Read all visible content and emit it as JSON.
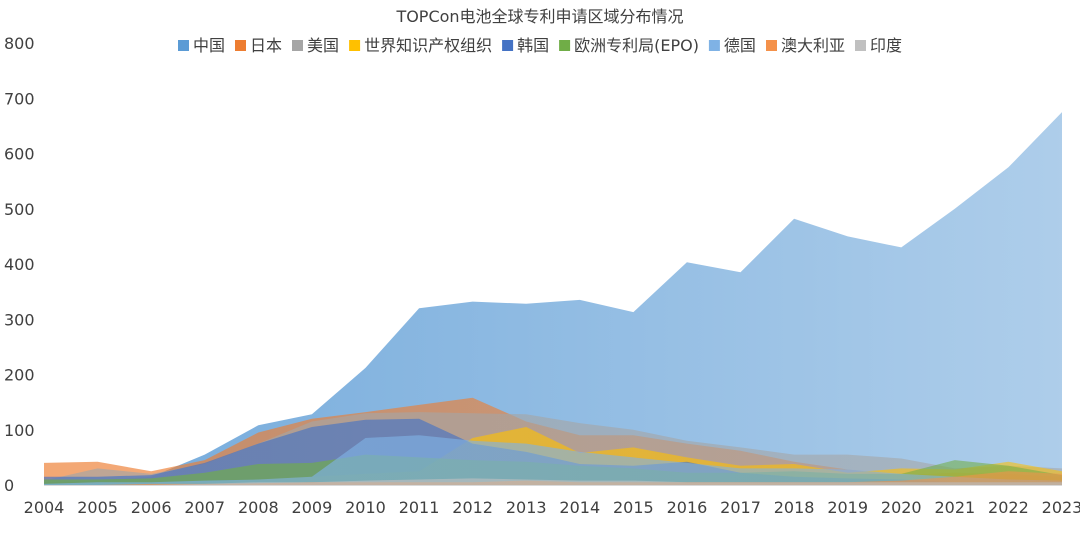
{
  "chart_data": {
    "type": "area",
    "title": "TOPCon电池全球专利申请区域分布情况",
    "xlabel": "",
    "ylabel": "",
    "ylim": [
      0,
      800
    ],
    "yticks": [
      "0",
      "100",
      "200",
      "300",
      "400",
      "500",
      "600",
      "700",
      "800"
    ],
    "categories": [
      "2004",
      "2005",
      "2006",
      "2007",
      "2008",
      "2009",
      "2010",
      "2011",
      "2012",
      "2013",
      "2014",
      "2015",
      "2016",
      "2017",
      "2018",
      "2019",
      "2020",
      "2021",
      "2022",
      "2023"
    ],
    "legend_position": "top",
    "series": [
      {
        "name": "中国",
        "color": "#5b9bd5",
        "values": [
          5,
          8,
          15,
          55,
          108,
          128,
          212,
          320,
          332,
          328,
          335,
          313,
          403,
          385,
          482,
          450,
          430,
          500,
          575,
          675
        ]
      },
      {
        "name": "日本",
        "color": "#ed7d31",
        "values": [
          40,
          42,
          25,
          45,
          95,
          120,
          132,
          145,
          158,
          115,
          90,
          90,
          75,
          62,
          42,
          28,
          18,
          22,
          20,
          15
        ]
      },
      {
        "name": "美国",
        "color": "#a5a5a5",
        "values": [
          8,
          30,
          20,
          38,
          75,
          115,
          130,
          132,
          130,
          128,
          112,
          100,
          80,
          68,
          55,
          55,
          48,
          30,
          35,
          30
        ]
      },
      {
        "name": "世界知识产权组织",
        "color": "#ffc000",
        "values": [
          0,
          0,
          2,
          5,
          10,
          15,
          20,
          25,
          85,
          105,
          58,
          68,
          50,
          35,
          38,
          22,
          30,
          28,
          42,
          25
        ]
      },
      {
        "name": "韩国",
        "color": "#4472c4",
        "values": [
          15,
          15,
          18,
          40,
          75,
          105,
          118,
          120,
          75,
          60,
          38,
          35,
          42,
          22,
          15,
          12,
          10,
          5,
          5,
          5
        ]
      },
      {
        "name": "欧洲专利局(EPO)",
        "color": "#70ad47",
        "values": [
          10,
          10,
          12,
          22,
          38,
          40,
          55,
          50,
          45,
          42,
          35,
          30,
          22,
          22,
          25,
          20,
          20,
          45,
          35,
          18
        ]
      },
      {
        "name": "德国",
        "color": "#7fb2e5",
        "values": [
          2,
          5,
          5,
          8,
          10,
          15,
          85,
          90,
          80,
          75,
          60,
          50,
          40,
          30,
          30,
          28,
          20,
          15,
          10,
          8
        ]
      },
      {
        "name": "澳大利亚",
        "color": "#f4914a",
        "values": [
          0,
          0,
          2,
          2,
          3,
          5,
          5,
          5,
          5,
          8,
          5,
          5,
          5,
          5,
          5,
          5,
          8,
          15,
          25,
          20
        ]
      },
      {
        "name": "印度",
        "color": "#c0c0c0",
        "values": [
          0,
          0,
          0,
          2,
          5,
          5,
          8,
          10,
          12,
          10,
          8,
          8,
          5,
          5,
          5,
          5,
          5,
          5,
          5,
          5
        ]
      }
    ]
  }
}
